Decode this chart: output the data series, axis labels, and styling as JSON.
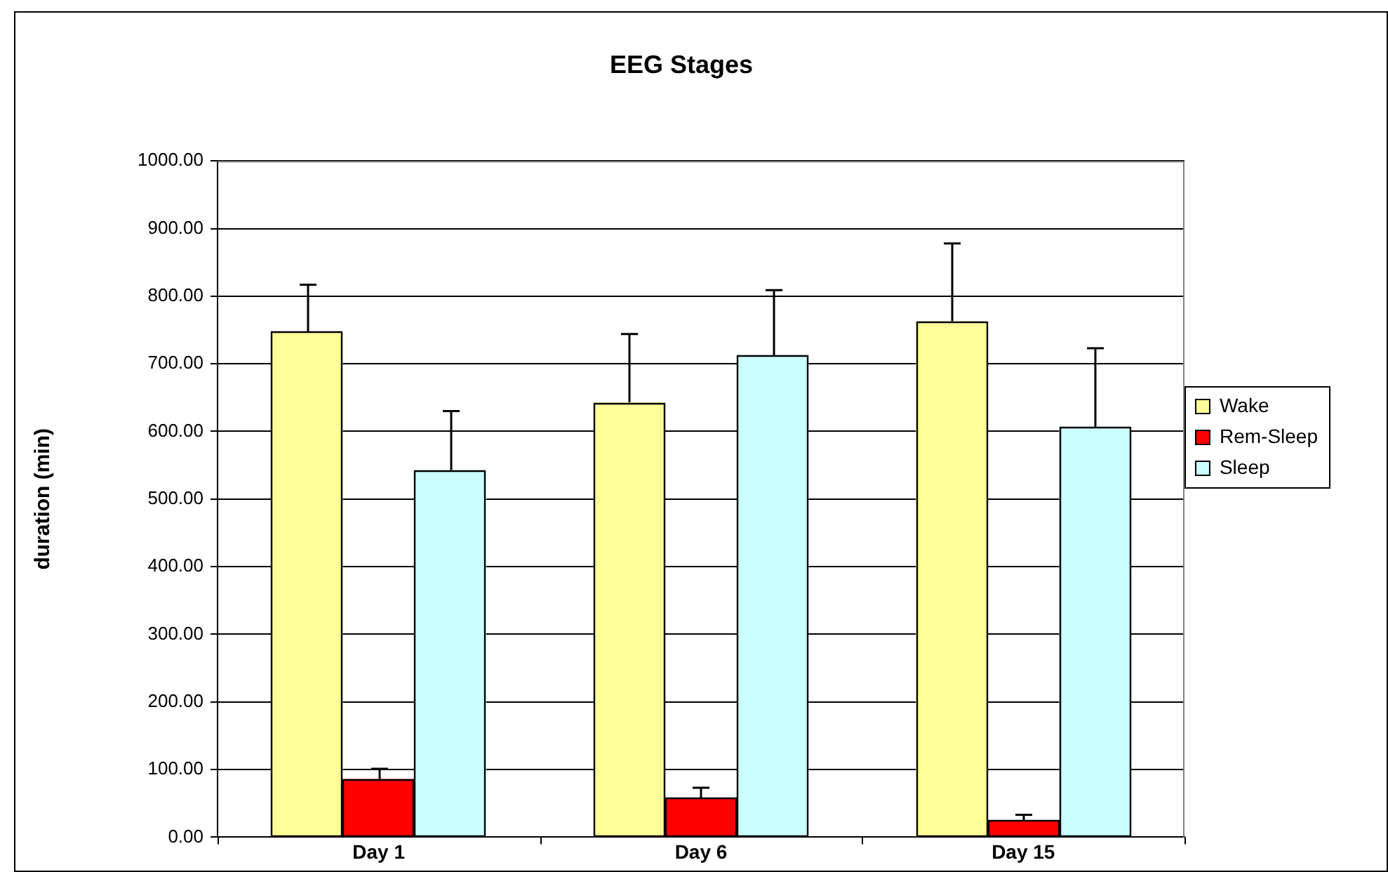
{
  "chart_data": {
    "type": "bar",
    "title": "EEG Stages",
    "ylabel": "duration (min)",
    "categories": [
      "Day 1",
      "Day 6",
      "Day 15"
    ],
    "series": [
      {
        "name": "Wake",
        "color": "#ffff99",
        "values": [
          748,
          643,
          763
        ],
        "errors": [
          [
            748,
            817
          ],
          [
            643,
            744
          ],
          [
            763,
            878
          ]
        ]
      },
      {
        "name": "Rem-Sleep",
        "color": "#ff0000",
        "values": [
          86,
          58,
          25
        ],
        "errors": [
          [
            86,
            101
          ],
          [
            58,
            73
          ],
          [
            25,
            33
          ]
        ]
      },
      {
        "name": "Sleep",
        "color": "#ccffff",
        "values": [
          543,
          712,
          607
        ],
        "errors": [
          [
            543,
            630
          ],
          [
            712,
            809
          ],
          [
            607,
            723
          ]
        ]
      }
    ],
    "ylim": [
      0,
      1000
    ],
    "yticks": [
      {
        "value": 0,
        "label": "0.00"
      },
      {
        "value": 100,
        "label": "100.00"
      },
      {
        "value": 200,
        "label": "200.00"
      },
      {
        "value": 300,
        "label": "300.00"
      },
      {
        "value": 400,
        "label": "400.00"
      },
      {
        "value": 500,
        "label": "500.00"
      },
      {
        "value": 600,
        "label": "600.00"
      },
      {
        "value": 700,
        "label": "700.00"
      },
      {
        "value": 800,
        "label": "800.00"
      },
      {
        "value": 900,
        "label": "900.00"
      },
      {
        "value": 1000,
        "label": "1000.00"
      }
    ],
    "grid": "y",
    "legend": "right"
  }
}
